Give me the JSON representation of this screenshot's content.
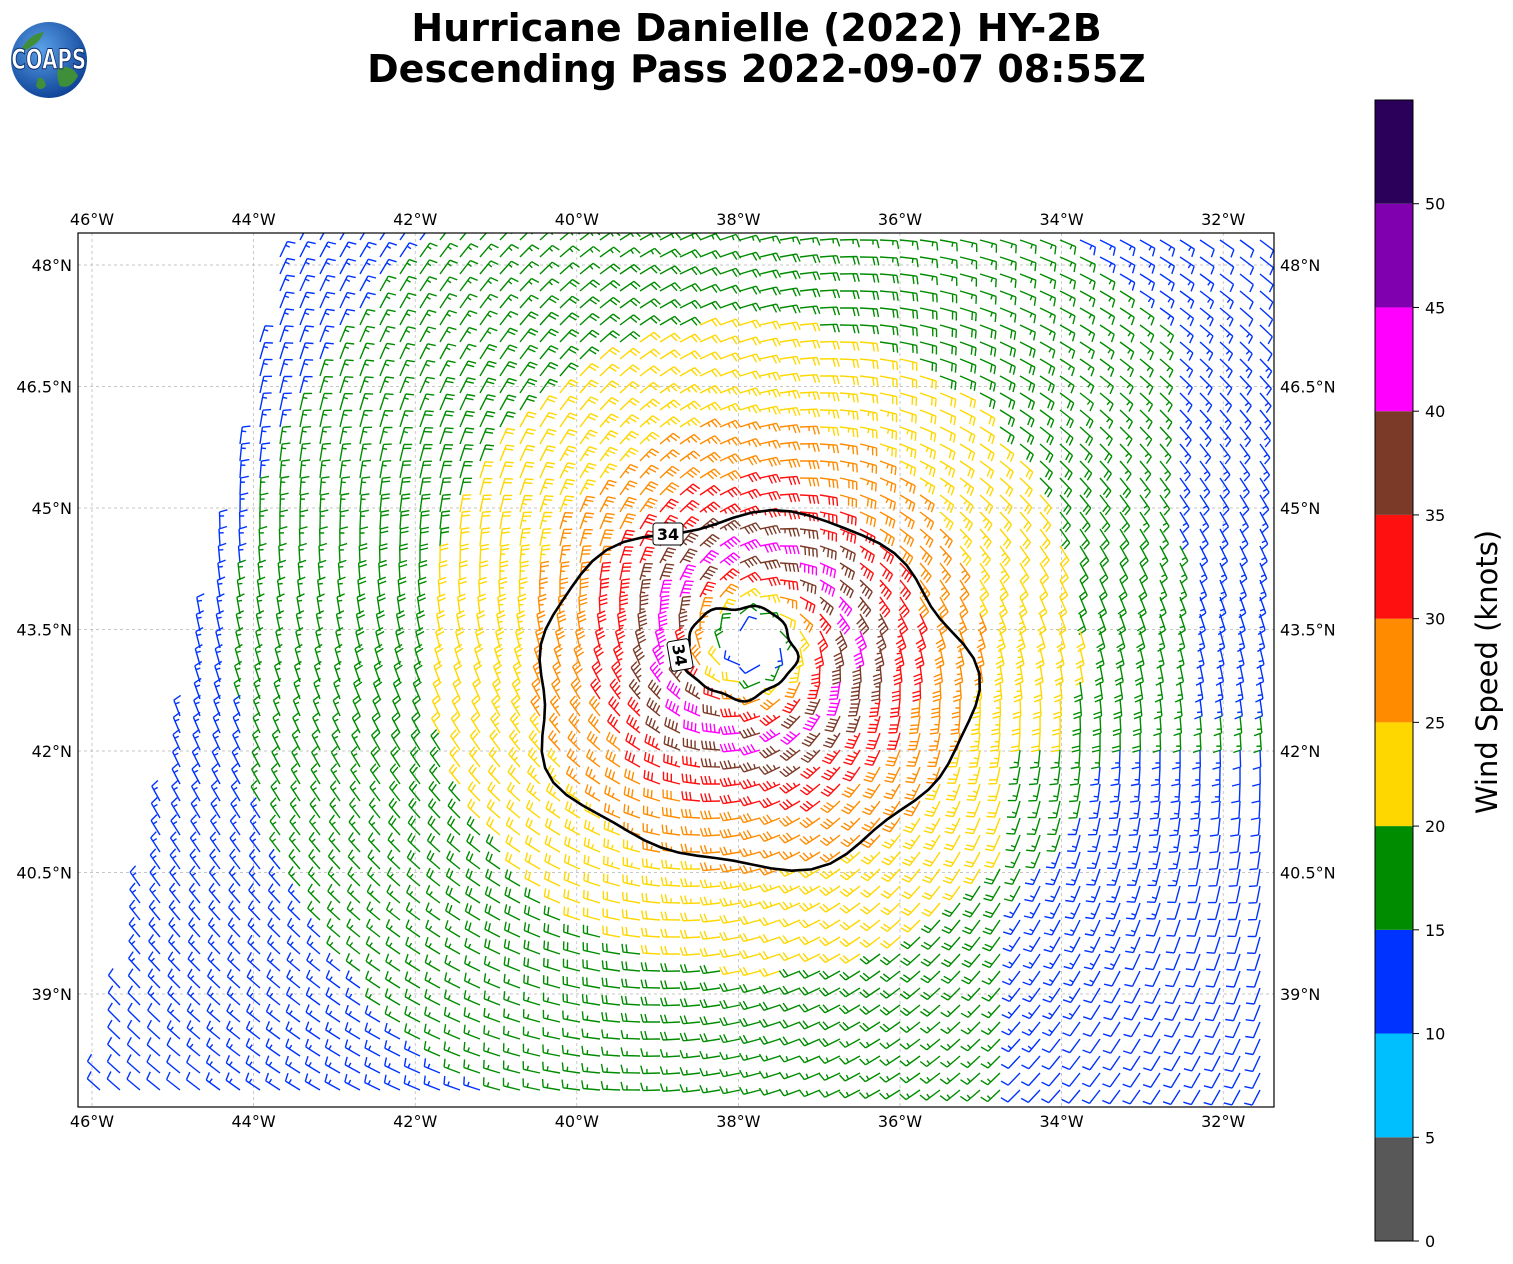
{
  "title_line1": "Hurricane Danielle (2022) HY-2B",
  "title_line2": "Descending Pass 2022-09-07 08:55Z",
  "logo_text": "COAPS",
  "map": {
    "lon_labels": [
      "46°W",
      "44°W",
      "42°W",
      "40°W",
      "38°W",
      "36°W",
      "34°W",
      "32°W"
    ],
    "lat_labels": [
      "48°N",
      "46.5°N",
      "45°N",
      "43.5°N",
      "42°N",
      "40.5°N",
      "39°N"
    ],
    "contour_label": "34",
    "center": {
      "lon": -37.8,
      "lat": 43.3
    },
    "extent": {
      "lon": [
        -46.2,
        -31.4
      ],
      "lat": [
        37.6,
        48.4
      ]
    }
  },
  "colorbar": {
    "label": "Wind Speed (knots)",
    "ticks": [
      "0",
      "5",
      "10",
      "15",
      "20",
      "25",
      "30",
      "35",
      "40",
      "45",
      "50"
    ],
    "bins": [
      {
        "min": 0,
        "max": 5,
        "color": "#585858"
      },
      {
        "min": 5,
        "max": 10,
        "color": "#00bfff"
      },
      {
        "min": 10,
        "max": 15,
        "color": "#0033ff"
      },
      {
        "min": 15,
        "max": 20,
        "color": "#008c00"
      },
      {
        "min": 20,
        "max": 25,
        "color": "#ffd700"
      },
      {
        "min": 25,
        "max": 30,
        "color": "#ff8c00"
      },
      {
        "min": 30,
        "max": 35,
        "color": "#ff1010"
      },
      {
        "min": 35,
        "max": 40,
        "color": "#7b3a28"
      },
      {
        "min": 40,
        "max": 45,
        "color": "#ff00ff"
      },
      {
        "min": 45,
        "max": 50,
        "color": "#8000b0"
      },
      {
        "min": 50,
        "max": 55,
        "color": "#2a005a"
      }
    ]
  }
}
